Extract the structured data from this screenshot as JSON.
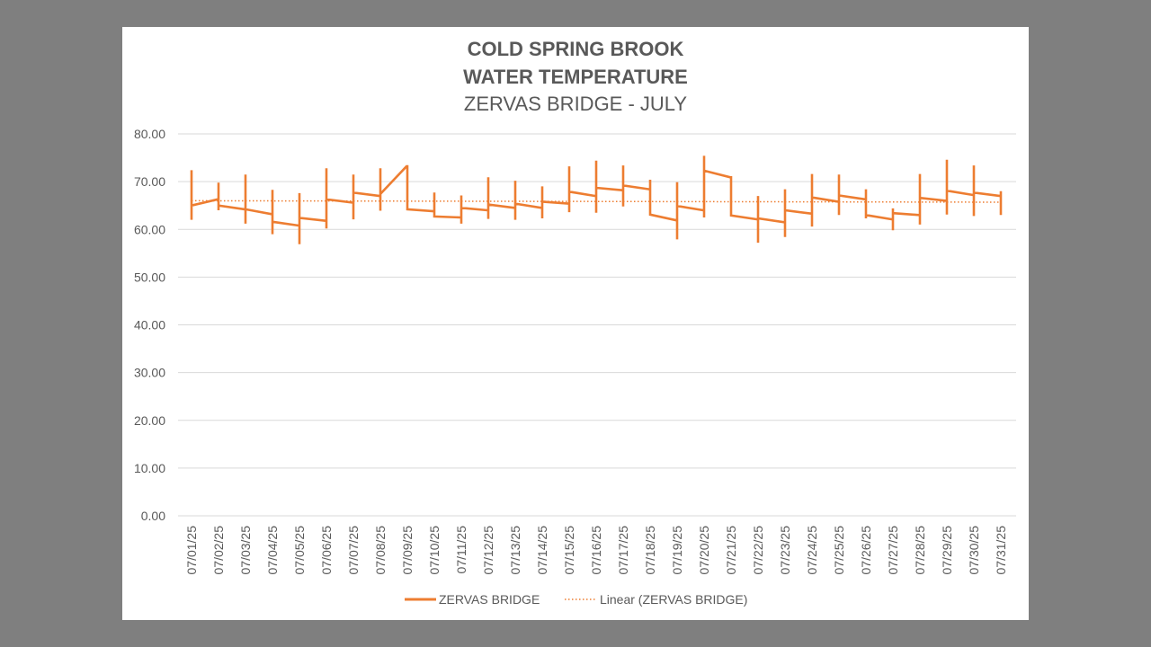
{
  "chart_data": {
    "type": "line",
    "title": [
      "COLD SPRING BROOK",
      "WATER TEMPERATURE",
      "ZERVAS BRIDGE - JULY"
    ],
    "xlabel": "",
    "ylabel": "",
    "ylim": [
      0,
      80
    ],
    "yticks": [
      "0.00",
      "10.00",
      "20.00",
      "30.00",
      "40.00",
      "50.00",
      "60.00",
      "70.00",
      "80.00"
    ],
    "grid": true,
    "legend_position": "bottom",
    "categories": [
      "07/01/25",
      "07/02/25",
      "07/03/25",
      "07/04/25",
      "07/05/25",
      "07/06/25",
      "07/07/25",
      "07/08/25",
      "07/09/25",
      "07/10/25",
      "07/11/25",
      "07/12/25",
      "07/13/25",
      "07/14/25",
      "07/15/25",
      "07/16/25",
      "07/17/25",
      "07/18/25",
      "07/19/25",
      "07/20/25",
      "07/21/25",
      "07/22/25",
      "07/23/25",
      "07/24/25",
      "07/25/25",
      "07/26/25",
      "07/27/25",
      "07/28/25",
      "07/29/25",
      "07/30/25",
      "07/31/25"
    ],
    "series": [
      {
        "name": "ZERVAS BRIDGE",
        "color": "#ed7d31",
        "style": "solid",
        "points": [
          [
            0,
            65.0
          ],
          [
            0,
            72.4
          ],
          [
            0,
            62.0
          ],
          [
            0,
            65.0
          ],
          [
            0.97,
            66.3
          ],
          [
            1,
            66.3
          ],
          [
            1,
            69.8
          ],
          [
            1,
            64.0
          ],
          [
            1,
            65.0
          ],
          [
            1.97,
            64.2
          ],
          [
            2,
            64.2
          ],
          [
            2,
            71.5
          ],
          [
            2,
            61.2
          ],
          [
            2,
            64.2
          ],
          [
            2.97,
            63.2
          ],
          [
            3,
            63.2
          ],
          [
            3,
            68.3
          ],
          [
            3,
            59.0
          ],
          [
            3,
            61.6
          ],
          [
            3.97,
            60.8
          ],
          [
            4,
            60.8
          ],
          [
            4,
            67.6
          ],
          [
            4,
            56.9
          ],
          [
            4,
            62.4
          ],
          [
            4.97,
            61.8
          ],
          [
            5,
            61.8
          ],
          [
            5,
            72.8
          ],
          [
            5,
            60.2
          ],
          [
            5,
            66.3
          ],
          [
            5.97,
            65.6
          ],
          [
            6,
            65.6
          ],
          [
            6,
            71.5
          ],
          [
            6,
            62.1
          ],
          [
            6,
            67.7
          ],
          [
            6.97,
            67.0
          ],
          [
            7,
            67.0
          ],
          [
            7,
            72.8
          ],
          [
            7,
            63.9
          ],
          [
            7,
            67.4
          ],
          [
            7.97,
            73.2
          ],
          [
            8,
            73.2
          ],
          [
            8,
            64.2
          ],
          [
            8.97,
            63.8
          ],
          [
            9,
            63.8
          ],
          [
            9,
            67.7
          ],
          [
            9,
            62.7
          ],
          [
            9.97,
            62.5
          ],
          [
            10,
            62.5
          ],
          [
            10,
            67.1
          ],
          [
            10,
            61.2
          ],
          [
            10,
            64.5
          ],
          [
            10.97,
            64.0
          ],
          [
            11,
            64.0
          ],
          [
            11,
            70.9
          ],
          [
            11,
            62.2
          ],
          [
            11,
            65.2
          ],
          [
            11.97,
            64.5
          ],
          [
            12,
            64.5
          ],
          [
            12,
            70.2
          ],
          [
            12,
            62.0
          ],
          [
            12,
            65.4
          ],
          [
            12.97,
            64.5
          ],
          [
            13,
            64.5
          ],
          [
            13,
            69.0
          ],
          [
            13,
            62.3
          ],
          [
            13,
            65.8
          ],
          [
            13.97,
            65.4
          ],
          [
            14,
            65.4
          ],
          [
            14,
            73.2
          ],
          [
            14,
            63.6
          ],
          [
            14,
            67.9
          ],
          [
            14.97,
            67.0
          ],
          [
            15,
            67.0
          ],
          [
            15,
            74.4
          ],
          [
            15,
            63.5
          ],
          [
            15,
            68.7
          ],
          [
            15.97,
            68.2
          ],
          [
            16,
            68.2
          ],
          [
            16,
            73.4
          ],
          [
            16,
            64.8
          ],
          [
            16,
            69.2
          ],
          [
            16.97,
            68.4
          ],
          [
            17,
            68.4
          ],
          [
            17,
            70.4
          ],
          [
            17,
            63.1
          ],
          [
            17.97,
            61.9
          ],
          [
            18,
            61.9
          ],
          [
            18,
            69.9
          ],
          [
            18,
            57.9
          ],
          [
            18,
            64.9
          ],
          [
            18.97,
            64.0
          ],
          [
            19,
            64.0
          ],
          [
            19,
            75.4
          ],
          [
            19,
            62.5
          ],
          [
            19,
            72.3
          ],
          [
            19.97,
            70.9
          ],
          [
            20,
            70.9
          ],
          [
            20,
            62.9
          ],
          [
            20.97,
            62.1
          ],
          [
            21,
            62.1
          ],
          [
            21,
            67.0
          ],
          [
            21,
            57.2
          ],
          [
            21,
            62.3
          ],
          [
            21.97,
            61.5
          ],
          [
            22,
            61.5
          ],
          [
            22,
            68.4
          ],
          [
            22,
            58.4
          ],
          [
            22,
            64.0
          ],
          [
            22.97,
            63.3
          ],
          [
            23,
            63.3
          ],
          [
            23,
            71.6
          ],
          [
            23,
            60.6
          ],
          [
            23,
            66.7
          ],
          [
            23.97,
            65.8
          ],
          [
            24,
            65.8
          ],
          [
            24,
            71.5
          ],
          [
            24,
            63.0
          ],
          [
            24,
            67.1
          ],
          [
            24.97,
            66.3
          ],
          [
            25,
            66.3
          ],
          [
            25,
            68.4
          ],
          [
            25,
            62.3
          ],
          [
            25,
            63.0
          ],
          [
            25.97,
            62.1
          ],
          [
            26,
            62.1
          ],
          [
            26,
            64.4
          ],
          [
            26,
            59.8
          ],
          [
            26,
            63.4
          ],
          [
            26.97,
            63.0
          ],
          [
            27,
            63.0
          ],
          [
            27,
            71.6
          ],
          [
            27,
            61.0
          ],
          [
            27,
            66.6
          ],
          [
            27.97,
            66.0
          ],
          [
            28,
            66.0
          ],
          [
            28,
            74.6
          ],
          [
            28,
            63.1
          ],
          [
            28,
            68.1
          ],
          [
            28.97,
            67.2
          ],
          [
            29,
            67.2
          ],
          [
            29,
            73.4
          ],
          [
            29,
            62.8
          ],
          [
            29,
            67.7
          ],
          [
            29.97,
            67.0
          ],
          [
            30,
            67.0
          ],
          [
            30,
            68.0
          ],
          [
            30,
            63.0
          ]
        ]
      },
      {
        "name": "Linear (ZERVAS BRIDGE)",
        "color": "#ed7d31",
        "style": "dotted",
        "points": [
          [
            0,
            66.0
          ],
          [
            30,
            65.7
          ]
        ]
      }
    ]
  }
}
